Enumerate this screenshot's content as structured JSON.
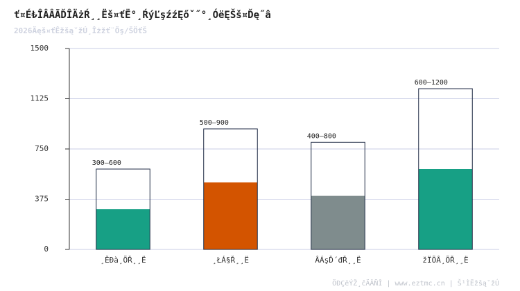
{
  "chart_data": {
    "type": "range-bar",
    "title": "ť¤É₺ÎÂÂÃĎÎÄżŔ¸¸Ëš¤ťË°¸ŔýĽşźźĘőˇ˝°¸ÓëĘŠš¤Ďę˝â",
    "subtitle": "2026Äęš¤ťÊžšąˇžÚ¸Îżžť¨Öş/ŠÖťŠ",
    "footer": "ÖĐÇëÝŽ¸ĉÄÂÑÎ | www.eztmc.cn | Š¹ÌËžšąˇžÚ",
    "categories": [
      "¸ĚÐà¸ÕŘ¸¸Ë",
      "¸ŁÁ§Ř¸¸Ë",
      "ÂÁşĎ´đŘ¸¸Ë",
      "žÏÕÂ¸ÕŘ¸¸Ë"
    ],
    "min": [
      300,
      500,
      400,
      600
    ],
    "max": [
      600,
      900,
      800,
      1200
    ],
    "range_labels": [
      "300–600",
      "500–900",
      "400–800",
      "600–1200"
    ],
    "colors": [
      "#17a085",
      "#d35400",
      "#7f8c8d",
      "#17a085"
    ],
    "ylim": [
      0,
      1500
    ],
    "yticks": [
      0,
      375,
      750,
      1125,
      1500
    ],
    "grid": true
  }
}
